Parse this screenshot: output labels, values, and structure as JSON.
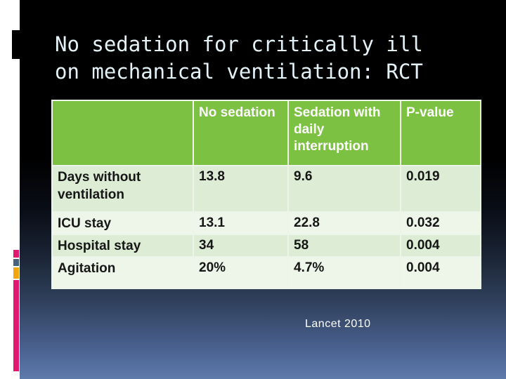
{
  "slide": {
    "title_line1": "No sedation for critically ill",
    "title_line2": "on mechanical ventilation: RCT",
    "citation": "Lancet 2010"
  },
  "table": {
    "header": [
      "",
      "No sedation",
      "Sedation with daily interruption",
      "P-value"
    ],
    "rows": [
      {
        "label": "Days without ventilation",
        "values": [
          "13.8",
          "9.6",
          "0.019"
        ]
      },
      {
        "label": "ICU stay",
        "values": [
          "13.1",
          "22.8",
          "0.032"
        ]
      },
      {
        "label": "Hospital stay",
        "values": [
          "34",
          "58",
          "0.004"
        ]
      },
      {
        "label": "Agitation",
        "values": [
          "20%",
          "4.7%",
          "0.004"
        ]
      }
    ]
  },
  "colors": {
    "header_green": "#7cc142",
    "row_band_dark": "#dcecd5",
    "row_band_light": "#eef6e9",
    "gridline": "#edf4e9",
    "title_text": "#e3f2f7",
    "accent_magenta": "#e0186f",
    "accent_slate": "#47627b",
    "accent_amber": "#f3a50f",
    "background_bottom": "#5e7bac"
  }
}
